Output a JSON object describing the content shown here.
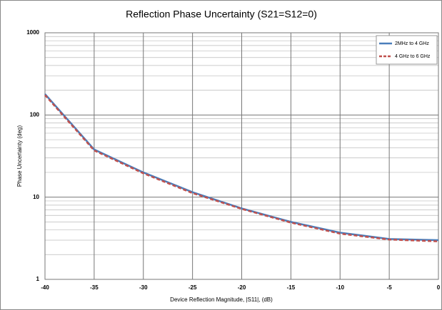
{
  "chart_data": {
    "type": "line",
    "title": "Reflection Phase Uncertainty (S21=S12=0)",
    "xlabel": "Device Reflection Magnitude, |S11|, (dB)",
    "ylabel": "Phase Uncertainty  (deg)",
    "x": [
      -40,
      -35,
      -30,
      -25,
      -20,
      -15,
      -10,
      -5,
      0
    ],
    "series": [
      {
        "name": "2MHz to 4 GHz",
        "color": "#4a7ebb",
        "dash": false,
        "values": [
          180,
          38,
          20,
          11.5,
          7.3,
          5,
          3.7,
          3.1,
          3.0
        ]
      },
      {
        "name": "4 GHz to 6 GHz",
        "color": "#c0504d",
        "dash": true,
        "values": [
          175,
          37,
          19.5,
          11.2,
          7.2,
          4.9,
          3.6,
          3.05,
          2.9
        ]
      }
    ],
    "xlim": [
      -40,
      0
    ],
    "xticks": [
      -40,
      -35,
      -30,
      -25,
      -20,
      -15,
      -10,
      -5,
      0
    ],
    "ylim": [
      1,
      1000
    ],
    "yticks": [
      1,
      10,
      100,
      1000
    ],
    "yscale": "log",
    "grid": true,
    "minor_grid": true,
    "legend": "upper right"
  }
}
